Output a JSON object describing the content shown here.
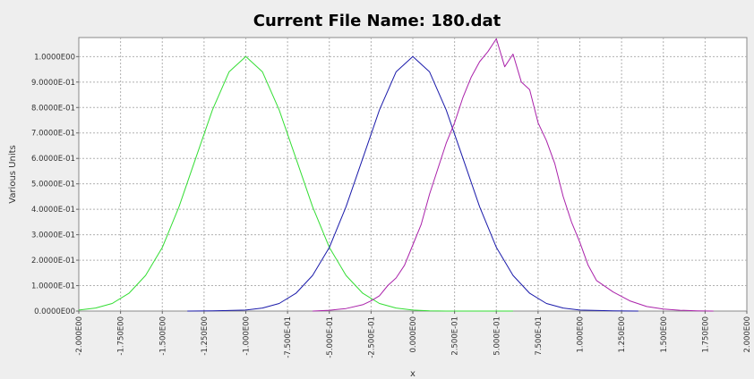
{
  "chart_data": {
    "type": "line",
    "title": "Current File Name: 180.dat",
    "xlabel": "x",
    "ylabel": "Various Units",
    "xlim": [
      -2.0,
      2.0
    ],
    "ylim": [
      0.0,
      1.075
    ],
    "grid": true,
    "x_ticks": [
      "-2.000E00",
      "-1.750E00",
      "-1.500E00",
      "-1.250E00",
      "-1.000E00",
      "-7.500E-01",
      "-5.000E-01",
      "-2.500E-01",
      "0.000E00",
      "2.500E-01",
      "5.000E-01",
      "7.500E-01",
      "1.000E00",
      "1.250E00",
      "1.500E00",
      "1.750E00",
      "2.000E00"
    ],
    "y_ticks": [
      "0.0000E00",
      "1.0000E-01",
      "2.0000E-01",
      "3.0000E-01",
      "4.0000E-01",
      "5.0000E-01",
      "6.0000E-01",
      "7.0000E-01",
      "8.0000E-01",
      "9.0000E-01",
      "1.0000E00"
    ],
    "series": [
      {
        "color": "#33dd33",
        "x": [
          -2.0,
          -1.9,
          -1.8,
          -1.7,
          -1.6,
          -1.5,
          -1.4,
          -1.3,
          -1.2,
          -1.1,
          -1.0,
          -0.9,
          -0.8,
          -0.7,
          -0.6,
          -0.5,
          -0.4,
          -0.3,
          -0.2,
          -0.1,
          0.0,
          0.1,
          0.2,
          0.3,
          0.4,
          0.5,
          0.6
        ],
        "y": [
          0.004,
          0.012,
          0.03,
          0.07,
          0.14,
          0.25,
          0.41,
          0.6,
          0.79,
          0.94,
          1.0,
          0.94,
          0.79,
          0.6,
          0.41,
          0.25,
          0.14,
          0.07,
          0.03,
          0.012,
          0.004,
          0.001,
          0.0,
          0.0,
          0.0,
          0.0,
          0.0
        ]
      },
      {
        "color": "#1a1aaa",
        "x": [
          -1.35,
          -1.2,
          -1.0,
          -0.9,
          -0.8,
          -0.7,
          -0.6,
          -0.5,
          -0.4,
          -0.3,
          -0.2,
          -0.1,
          0.0,
          0.1,
          0.2,
          0.3,
          0.4,
          0.5,
          0.6,
          0.7,
          0.8,
          0.9,
          1.0,
          1.2,
          1.35
        ],
        "y": [
          0.0,
          0.001,
          0.004,
          0.012,
          0.03,
          0.07,
          0.14,
          0.25,
          0.41,
          0.6,
          0.79,
          0.94,
          1.0,
          0.94,
          0.79,
          0.6,
          0.41,
          0.25,
          0.14,
          0.07,
          0.03,
          0.012,
          0.004,
          0.001,
          0.0
        ]
      },
      {
        "color": "#aa22aa",
        "x": [
          -0.6,
          -0.5,
          -0.4,
          -0.3,
          -0.25,
          -0.2,
          -0.15,
          -0.1,
          -0.05,
          0.0,
          0.05,
          0.1,
          0.15,
          0.2,
          0.25,
          0.3,
          0.35,
          0.4,
          0.45,
          0.5,
          0.55,
          0.6,
          0.65,
          0.7,
          0.75,
          0.8,
          0.85,
          0.9,
          0.95,
          1.0,
          1.05,
          1.1,
          1.2,
          1.3,
          1.4,
          1.5,
          1.6,
          1.7,
          1.8
        ],
        "y": [
          0.0,
          0.003,
          0.01,
          0.025,
          0.04,
          0.06,
          0.1,
          0.13,
          0.18,
          0.26,
          0.34,
          0.46,
          0.56,
          0.66,
          0.74,
          0.84,
          0.92,
          0.98,
          1.02,
          1.07,
          0.96,
          1.01,
          0.9,
          0.87,
          0.74,
          0.67,
          0.58,
          0.45,
          0.35,
          0.27,
          0.18,
          0.12,
          0.075,
          0.04,
          0.018,
          0.008,
          0.003,
          0.001,
          0.0
        ]
      }
    ]
  }
}
